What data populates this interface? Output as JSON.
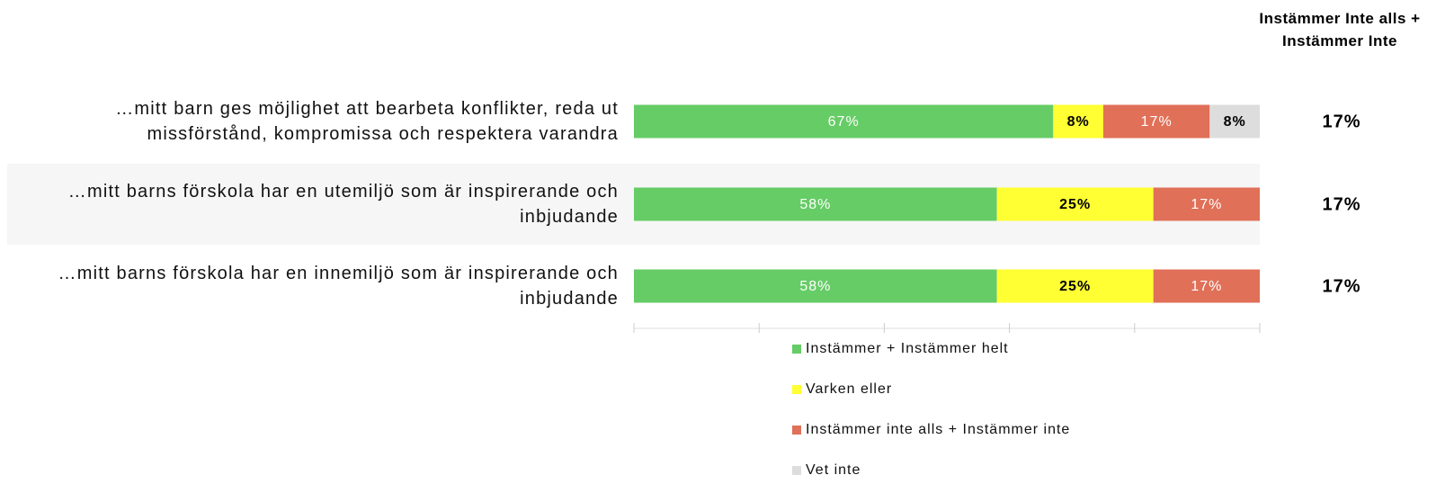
{
  "chart_data": {
    "type": "stacked-bar-horizontal",
    "categories": [
      "…mitt barn ges möjlighet att bearbeta konflikter, reda ut missförstånd, kompromissa och respektera varandra",
      "…mitt barns förskola har en utemiljö som är inspirerande och inbjudande",
      "…mitt barns förskola har en innemiljö som är inspirerande och inbjudande"
    ],
    "series": [
      {
        "name": "Instämmer + Instämmer helt",
        "color": "#66cc66",
        "label_color": "#ffffff",
        "values": [
          67,
          58,
          58
        ],
        "value_labels": [
          "67%",
          "58%",
          "58%"
        ]
      },
      {
        "name": "Varken eller",
        "color": "#ffff33",
        "label_color": "#000000",
        "values": [
          8,
          25,
          25
        ],
        "value_labels": [
          "8%",
          "25%",
          "25%"
        ]
      },
      {
        "name": "Instämmer inte alls + Instämmer inte",
        "color": "#e07058",
        "label_color": "#ffffff",
        "values": [
          17,
          17,
          17
        ],
        "value_labels": [
          "17%",
          "17%",
          "17%"
        ]
      },
      {
        "name": "Vet inte",
        "color": "#dddddd",
        "label_color": "#000000",
        "values": [
          8,
          null,
          null
        ],
        "value_labels": [
          "8%",
          null,
          null
        ]
      }
    ],
    "xlim": [
      0,
      100
    ],
    "xticks": [
      0,
      20,
      40,
      60,
      80,
      100
    ],
    "side_column": {
      "title": "Instämmer Inte alls + Instämmer Inte",
      "values": [
        17,
        17,
        17
      ],
      "value_labels": [
        "17%",
        "17%",
        "17%"
      ]
    },
    "legend": "bottom"
  }
}
